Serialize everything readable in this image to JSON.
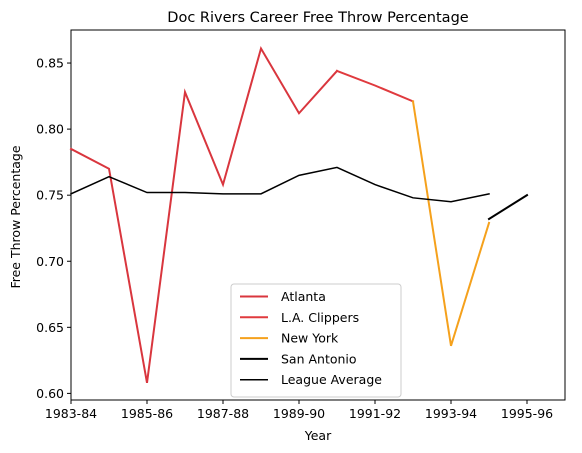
{
  "chart_data": {
    "type": "line",
    "title": "Doc Rivers Career Free Throw Percentage",
    "xlabel": "Year",
    "ylabel": "Free Throw Percentage",
    "x_tick_labels": [
      "1983-84",
      "1985-86",
      "1987-88",
      "1989-90",
      "1991-92",
      "1993-94",
      "1995-96"
    ],
    "y_ticks": [
      0.6,
      0.65,
      0.7,
      0.75,
      0.8,
      0.85
    ],
    "y_tick_labels": [
      "0.60",
      "0.65",
      "0.70",
      "0.75",
      "0.80",
      "0.85"
    ],
    "xlim": [
      1983,
      1996
    ],
    "ylim": [
      0.595,
      0.875
    ],
    "x_unit": "season start year",
    "grid": false,
    "legend_position": "lower center",
    "series": [
      {
        "name": "Atlanta",
        "color": "#d9363e",
        "linewidth": 2,
        "x": [
          1983,
          1984,
          1985,
          1986,
          1987,
          1988,
          1989,
          1990
        ],
        "y": [
          0.785,
          0.77,
          0.608,
          0.828,
          0.758,
          0.861,
          0.812,
          0.844
        ]
      },
      {
        "name": "L.A. Clippers",
        "color": "#e03a3e",
        "linewidth": 2,
        "x": [
          1990,
          1991,
          1992
        ],
        "y": [
          0.844,
          0.833,
          0.821
        ]
      },
      {
        "name": "New York",
        "color": "#f5a11c",
        "linewidth": 2,
        "x": [
          1992,
          1993,
          1994
        ],
        "y": [
          0.821,
          0.636,
          0.729
        ]
      },
      {
        "name": "San Antonio",
        "color": "#000000",
        "linewidth": 2,
        "x": [
          1994,
          1995
        ],
        "y": [
          0.732,
          0.75
        ]
      },
      {
        "name": "League Average",
        "color": "#000000",
        "linewidth": 1.5,
        "x": [
          1983,
          1984,
          1985,
          1986,
          1987,
          1988,
          1989,
          1990,
          1991,
          1992,
          1993,
          1994
        ],
        "y": [
          0.751,
          0.764,
          0.752,
          0.752,
          0.751,
          0.751,
          0.765,
          0.771,
          0.758,
          0.748,
          0.745,
          0.751
        ]
      }
    ]
  }
}
